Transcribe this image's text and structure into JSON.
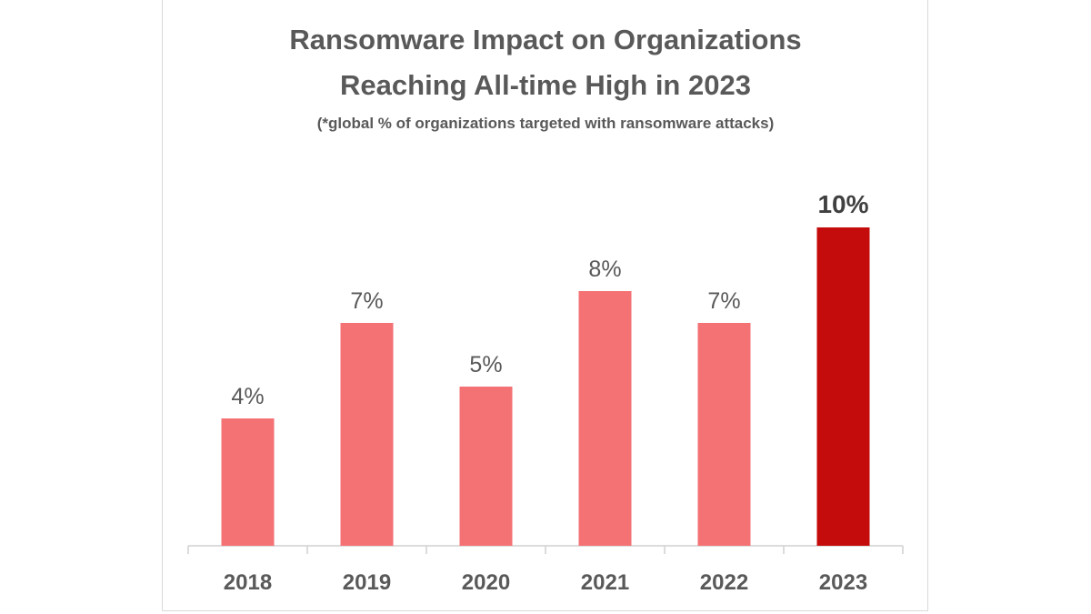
{
  "chart_data": {
    "type": "bar",
    "title": "Ransomware Impact on Organizations Reaching All-time High in 2023",
    "title_lines": [
      "Ransomware Impact on Organizations",
      "Reaching All-time High in 2023"
    ],
    "subtitle": "(*global % of organizations targeted with ransomware attacks)",
    "categories": [
      "2018",
      "2019",
      "2020",
      "2021",
      "2022",
      "2023"
    ],
    "values": [
      4,
      7,
      5,
      8,
      7,
      10
    ],
    "data_labels": [
      "4%",
      "7%",
      "5%",
      "8%",
      "7%",
      "10%"
    ],
    "highlight_index": 5,
    "xlabel": "",
    "ylabel": "",
    "ylim": [
      0,
      10
    ],
    "grid": false,
    "colors": {
      "bar": "#F47174",
      "highlight": "#C40C0C",
      "text": "#595959",
      "axis": "#d0d0d0"
    }
  }
}
